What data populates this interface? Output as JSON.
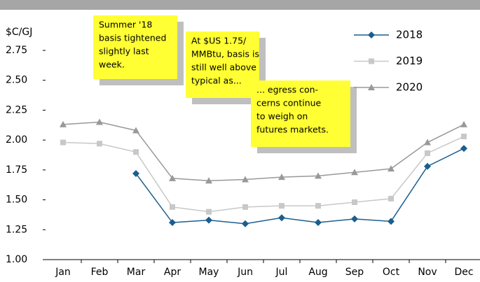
{
  "chart_data": {
    "type": "line",
    "unit_label": "$C/GJ",
    "categories": [
      "Jan",
      "Feb",
      "Mar",
      "Apr",
      "May",
      "Jun",
      "Jul",
      "Aug",
      "Sep",
      "Oct",
      "Nov",
      "Dec"
    ],
    "series": [
      {
        "name": "2018",
        "color": "#1a5e8f",
        "marker": "diamond",
        "values": [
          null,
          null,
          1.72,
          1.31,
          1.33,
          1.3,
          1.35,
          1.31,
          1.34,
          1.32,
          1.78,
          1.93
        ]
      },
      {
        "name": "2019",
        "color": "#c8c8c8",
        "marker": "square",
        "values": [
          1.98,
          1.97,
          1.9,
          1.44,
          1.4,
          1.44,
          1.45,
          1.45,
          1.48,
          1.51,
          1.89,
          2.03
        ]
      },
      {
        "name": "2020",
        "color": "#999999",
        "marker": "triangle",
        "values": [
          2.13,
          2.15,
          2.08,
          1.68,
          1.66,
          1.67,
          1.69,
          1.7,
          1.73,
          1.76,
          1.98,
          2.13
        ]
      }
    ],
    "ylim": [
      1,
      2.75
    ],
    "yticks": [
      {
        "value": 1,
        "label": "1.00"
      },
      {
        "value": 1.25,
        "label": "1.25"
      },
      {
        "value": 1.5,
        "label": "1.50"
      },
      {
        "value": 1.75,
        "label": "1.75"
      },
      {
        "value": 2,
        "label": "2.00"
      },
      {
        "value": 2.25,
        "label": "2.25"
      },
      {
        "value": 2.5,
        "label": "2.50"
      },
      {
        "value": 2.75,
        "label": "2.75"
      }
    ],
    "legend": "upper right",
    "annotations": [
      {
        "lines": [
          "Summer '18",
          "basis tightened",
          "slightly last",
          "week."
        ]
      },
      {
        "lines": [
          "At $US 1.75/",
          "MMBtu, basis is",
          "still well above",
          "typical as..."
        ]
      },
      {
        "lines": [
          "... egress con-",
          "cerns continue",
          "to weigh on",
          "futures markets."
        ]
      }
    ]
  }
}
